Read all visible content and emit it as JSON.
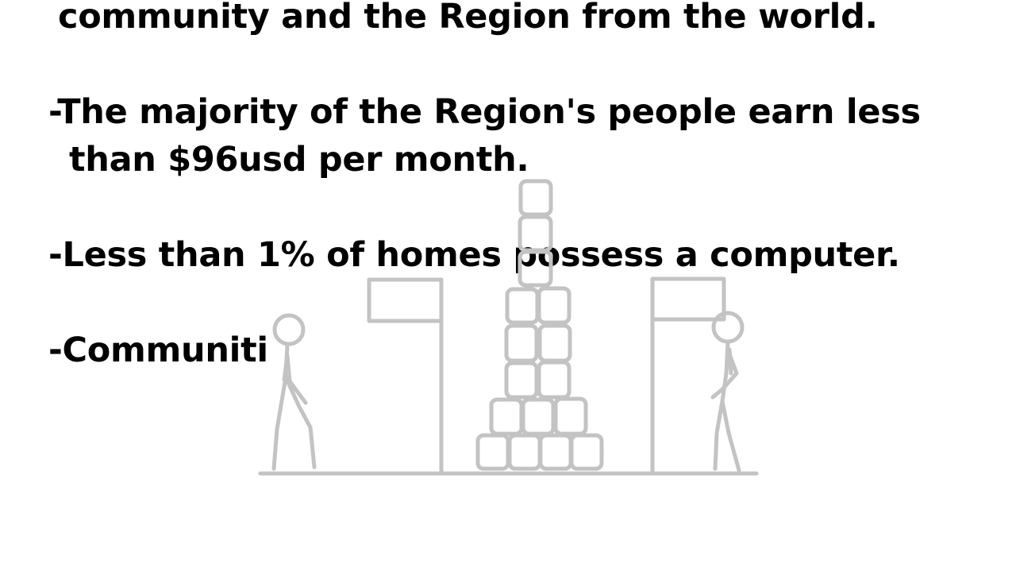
{
  "slide": {
    "lines": [
      "community and the Region from the world.",
      "-The majority of the Region's people earn less",
      "than $96usd per month.",
      "-Less than 1% of homes possess a computer.",
      "-Communiti"
    ]
  },
  "illustration": {
    "stroke_color": "#c3c3c3"
  }
}
